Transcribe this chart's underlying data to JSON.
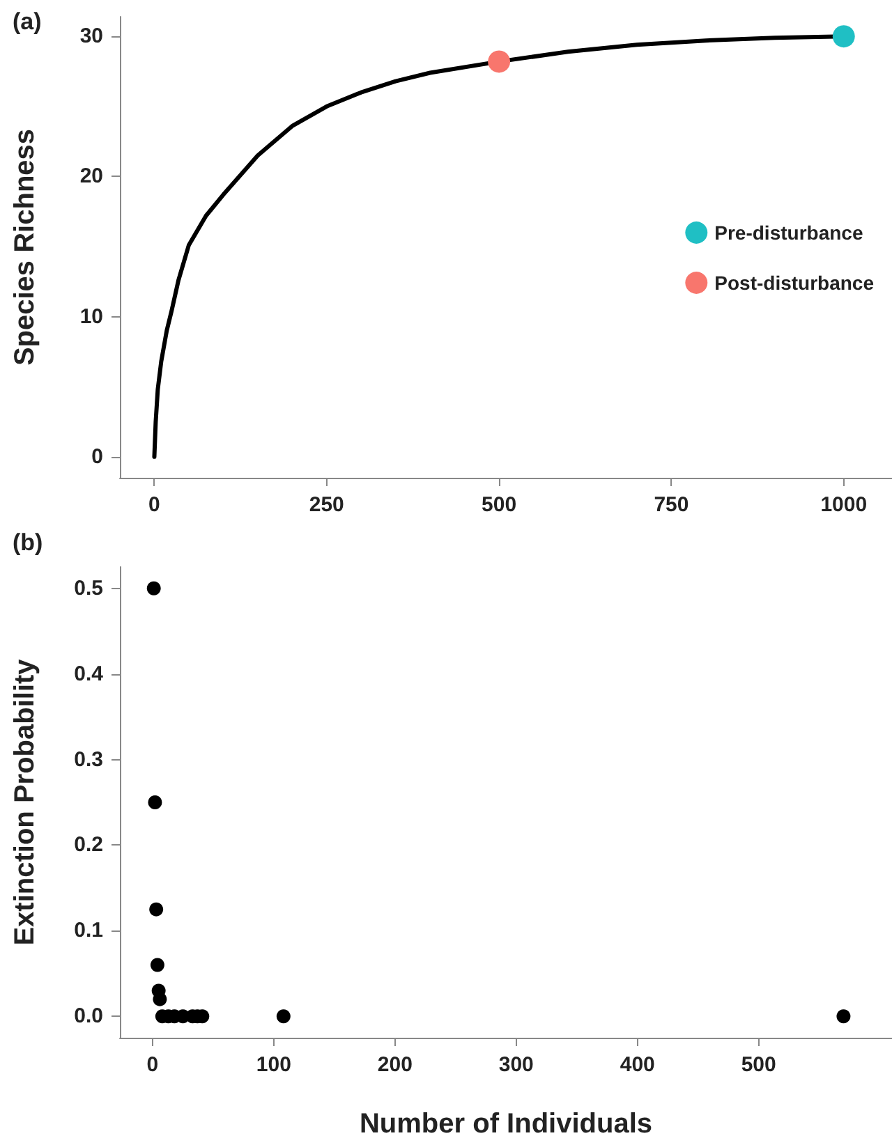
{
  "chart_data": [
    {
      "type": "line",
      "title": "(a)",
      "ylabel": "Species Richness",
      "xlim": [
        -50,
        1070
      ],
      "xticks": [
        0,
        250,
        500,
        750,
        1000
      ],
      "ylim": [
        -1.5,
        31.4
      ],
      "yticks": [
        0,
        10,
        20,
        30
      ],
      "grid": false,
      "legend": "right",
      "marker": "circle",
      "series": [
        {
          "color": "#000000",
          "marker": "none",
          "x": [
            0,
            2,
            5,
            10,
            18,
            25,
            35,
            50,
            75,
            100,
            150,
            200,
            250,
            300,
            350,
            400,
            500,
            600,
            700,
            800,
            900,
            1000
          ],
          "values": [
            0,
            2.5,
            4.8,
            6.8,
            9,
            10.4,
            12.6,
            15.1,
            17.2,
            18.7,
            21.5,
            23.6,
            25,
            26,
            26.8,
            27.4,
            28.2,
            28.9,
            29.4,
            29.7,
            29.9,
            30
          ]
        },
        {
          "type": "scatter",
          "name": "Pre-disturbance",
          "color": "#1fbfc4",
          "x": [
            1000
          ],
          "values": [
            30
          ]
        },
        {
          "type": "scatter",
          "name": "Post-disturbance",
          "color": "#f8766d",
          "x": [
            500
          ],
          "values": [
            28.2
          ]
        }
      ]
    },
    {
      "type": "scatter",
      "title": "(b)",
      "xlabel": "Number of Individuals",
      "ylabel": "Extinction Probability",
      "xlim": [
        -27,
        610
      ],
      "xticks": [
        0,
        100,
        200,
        300,
        400,
        500
      ],
      "ylim": [
        -0.025,
        0.525
      ],
      "yticks": [
        {
          "value": 0,
          "label": "0.0"
        },
        0.1,
        0.2,
        0.3,
        0.4,
        0.5
      ],
      "grid": false,
      "legend": false,
      "marker": "circle",
      "series": [
        {
          "color": "#000000",
          "x": [
            1,
            2,
            3,
            4,
            5,
            6,
            8,
            13,
            18,
            25,
            33,
            37,
            41,
            108,
            570
          ],
          "values": [
            0.5,
            0.25,
            0.125,
            0.06,
            0.03,
            0.02,
            0,
            0,
            0,
            0,
            0,
            0,
            0,
            0,
            0
          ]
        }
      ]
    }
  ]
}
